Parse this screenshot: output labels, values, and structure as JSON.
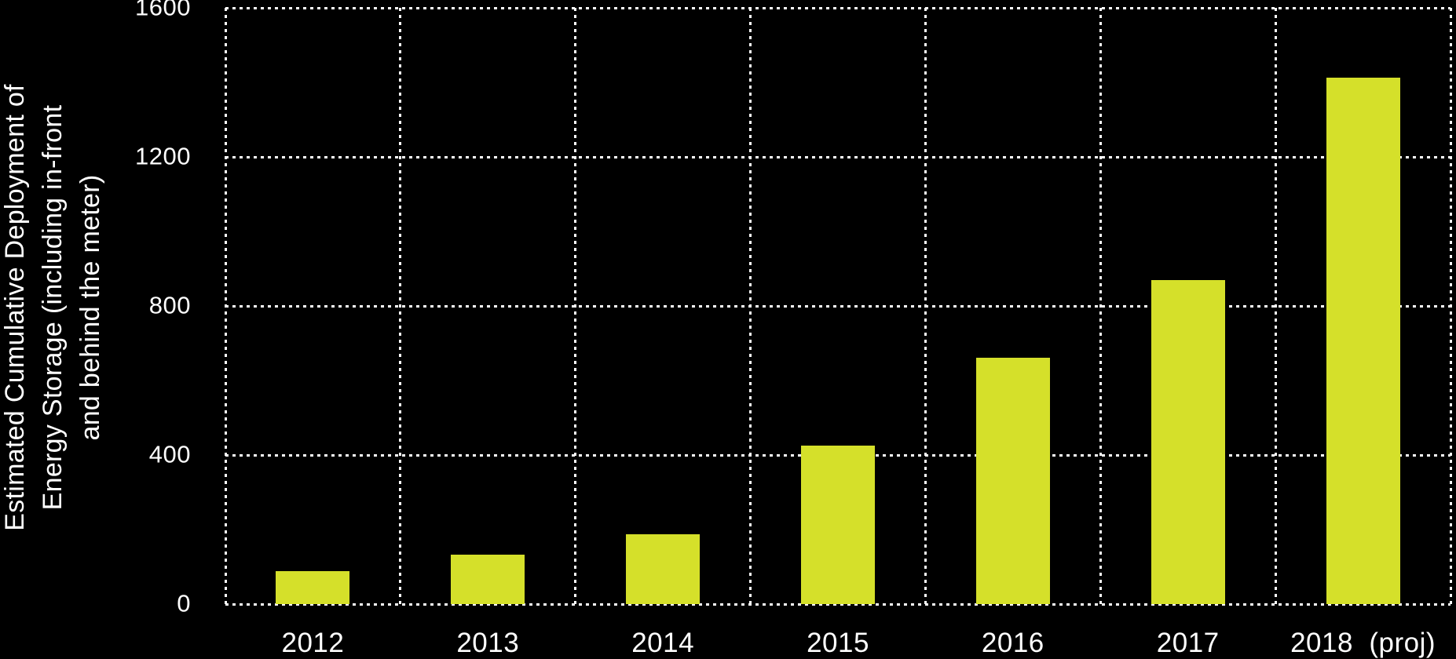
{
  "chart_data": {
    "type": "bar",
    "title": "",
    "xlabel": "",
    "ylabel_text": "Estimated Cumulative Deployment of\nEnergy Storage (including in-front\nand behind the meter)",
    "ylabel_lines": [
      "Estimated Cumulative Deployment of",
      "Energy Storage (including in-front",
      "and behind the meter)"
    ],
    "categories": [
      "2012",
      "2013",
      "2014",
      "2015",
      "2016",
      "2017",
      "2018  (proj)"
    ],
    "values": [
      88,
      133,
      188,
      425,
      662,
      869,
      1412
    ],
    "yticks": [
      "0",
      "400",
      "800",
      "1200",
      "1600"
    ],
    "ytick_values": [
      0,
      400,
      800,
      1200,
      1600
    ],
    "ylim": [
      0,
      1600
    ],
    "legend": "none",
    "grid": {
      "style": "dotted",
      "horizontal": true,
      "vertical": true
    },
    "colors": {
      "background": "#000000",
      "bar": "#d5e02a",
      "text": "#ffffff",
      "grid": "#ffffff"
    }
  }
}
